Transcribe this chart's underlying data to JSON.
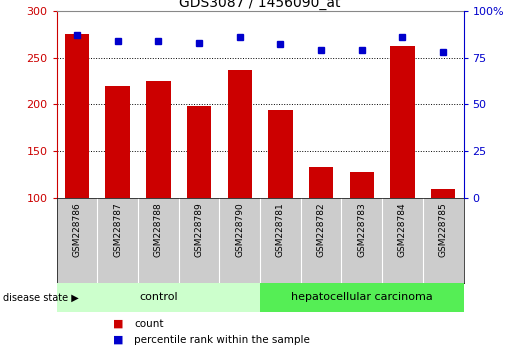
{
  "title": "GDS3087 / 1456090_at",
  "samples": [
    "GSM228786",
    "GSM228787",
    "GSM228788",
    "GSM228789",
    "GSM228790",
    "GSM228781",
    "GSM228782",
    "GSM228783",
    "GSM228784",
    "GSM228785"
  ],
  "counts": [
    275,
    220,
    225,
    198,
    237,
    194,
    133,
    128,
    262,
    110
  ],
  "percentiles": [
    87,
    84,
    84,
    83,
    86,
    82,
    79,
    79,
    86,
    78
  ],
  "ylim_left": [
    100,
    300
  ],
  "ylim_right": [
    0,
    100
  ],
  "yticks_left": [
    100,
    150,
    200,
    250,
    300
  ],
  "yticks_right": [
    0,
    25,
    50,
    75,
    100
  ],
  "bar_color": "#cc0000",
  "dot_color": "#0000cc",
  "control_color": "#ccffcc",
  "cancer_color": "#55ee55",
  "left_axis_color": "#cc0000",
  "right_axis_color": "#0000cc",
  "tick_label_bg": "#cccccc",
  "legend_count_color": "#cc0000",
  "legend_pct_color": "#0000cc",
  "n_control": 5,
  "n_cancer": 5
}
